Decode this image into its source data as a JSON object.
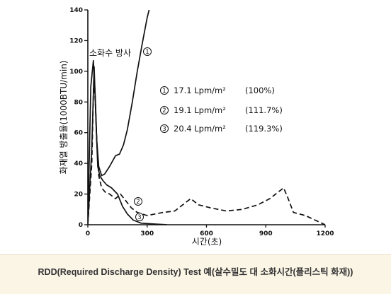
{
  "chart_data": {
    "type": "line",
    "title": "",
    "xlabel": "시간(초)",
    "ylabel": "화재열 방출율(1000BTU/min)",
    "xlim": [
      0,
      1200
    ],
    "ylim": [
      0,
      140
    ],
    "x_ticks": [
      "0",
      "300",
      "600",
      "900",
      "1200"
    ],
    "y_ticks": [
      "0",
      "20",
      "40",
      "60",
      "80",
      "100",
      "120",
      "140"
    ],
    "annotation": "소화수 방사",
    "series": [
      {
        "marker": "①",
        "name": "17.1 Lpm/m²",
        "pct": "(100%)",
        "style": "solid",
        "x": [
          0,
          15,
          28,
          38,
          45,
          55,
          70,
          85,
          110,
          140,
          160,
          180,
          200,
          225,
          250,
          275,
          300,
          310
        ],
        "y": [
          0,
          90,
          107,
          82,
          55,
          38,
          32,
          33,
          38,
          45,
          46,
          52,
          62,
          80,
          100,
          118,
          135,
          140
        ]
      },
      {
        "marker": "②",
        "name": "19.1 Lpm/m²",
        "pct": "(111.7%)",
        "style": "dashed",
        "x": [
          0,
          20,
          30,
          38,
          45,
          55,
          70,
          90,
          110,
          140,
          165,
          190,
          220,
          250,
          300,
          380,
          440,
          480,
          520,
          560,
          620,
          700,
          780,
          860,
          920,
          960,
          990,
          1010,
          1040,
          1100,
          1150,
          1200
        ],
        "y": [
          0,
          40,
          95,
          80,
          55,
          32,
          24,
          21,
          20,
          17,
          20,
          16,
          11,
          8,
          6,
          8,
          9,
          13,
          17,
          13,
          11,
          9,
          10,
          13,
          17,
          21,
          24,
          18,
          8,
          6,
          3,
          0
        ]
      },
      {
        "marker": "③",
        "name": "20.4 Lpm/m²",
        "pct": "(119.3%)",
        "style": "solid",
        "x": [
          0,
          20,
          32,
          42,
          50,
          60,
          75,
          95,
          120,
          150,
          175,
          200,
          230,
          270,
          330,
          400
        ],
        "y": [
          0,
          50,
          103,
          65,
          38,
          32,
          29,
          26,
          24,
          20,
          12,
          7,
          3,
          1,
          0.5,
          0
        ]
      }
    ],
    "legend_position": "right",
    "grid": false
  },
  "caption": "RDD(Required Discharge Density) Test 예(살수밀도 대 소화시간(플리스틱 화재))"
}
